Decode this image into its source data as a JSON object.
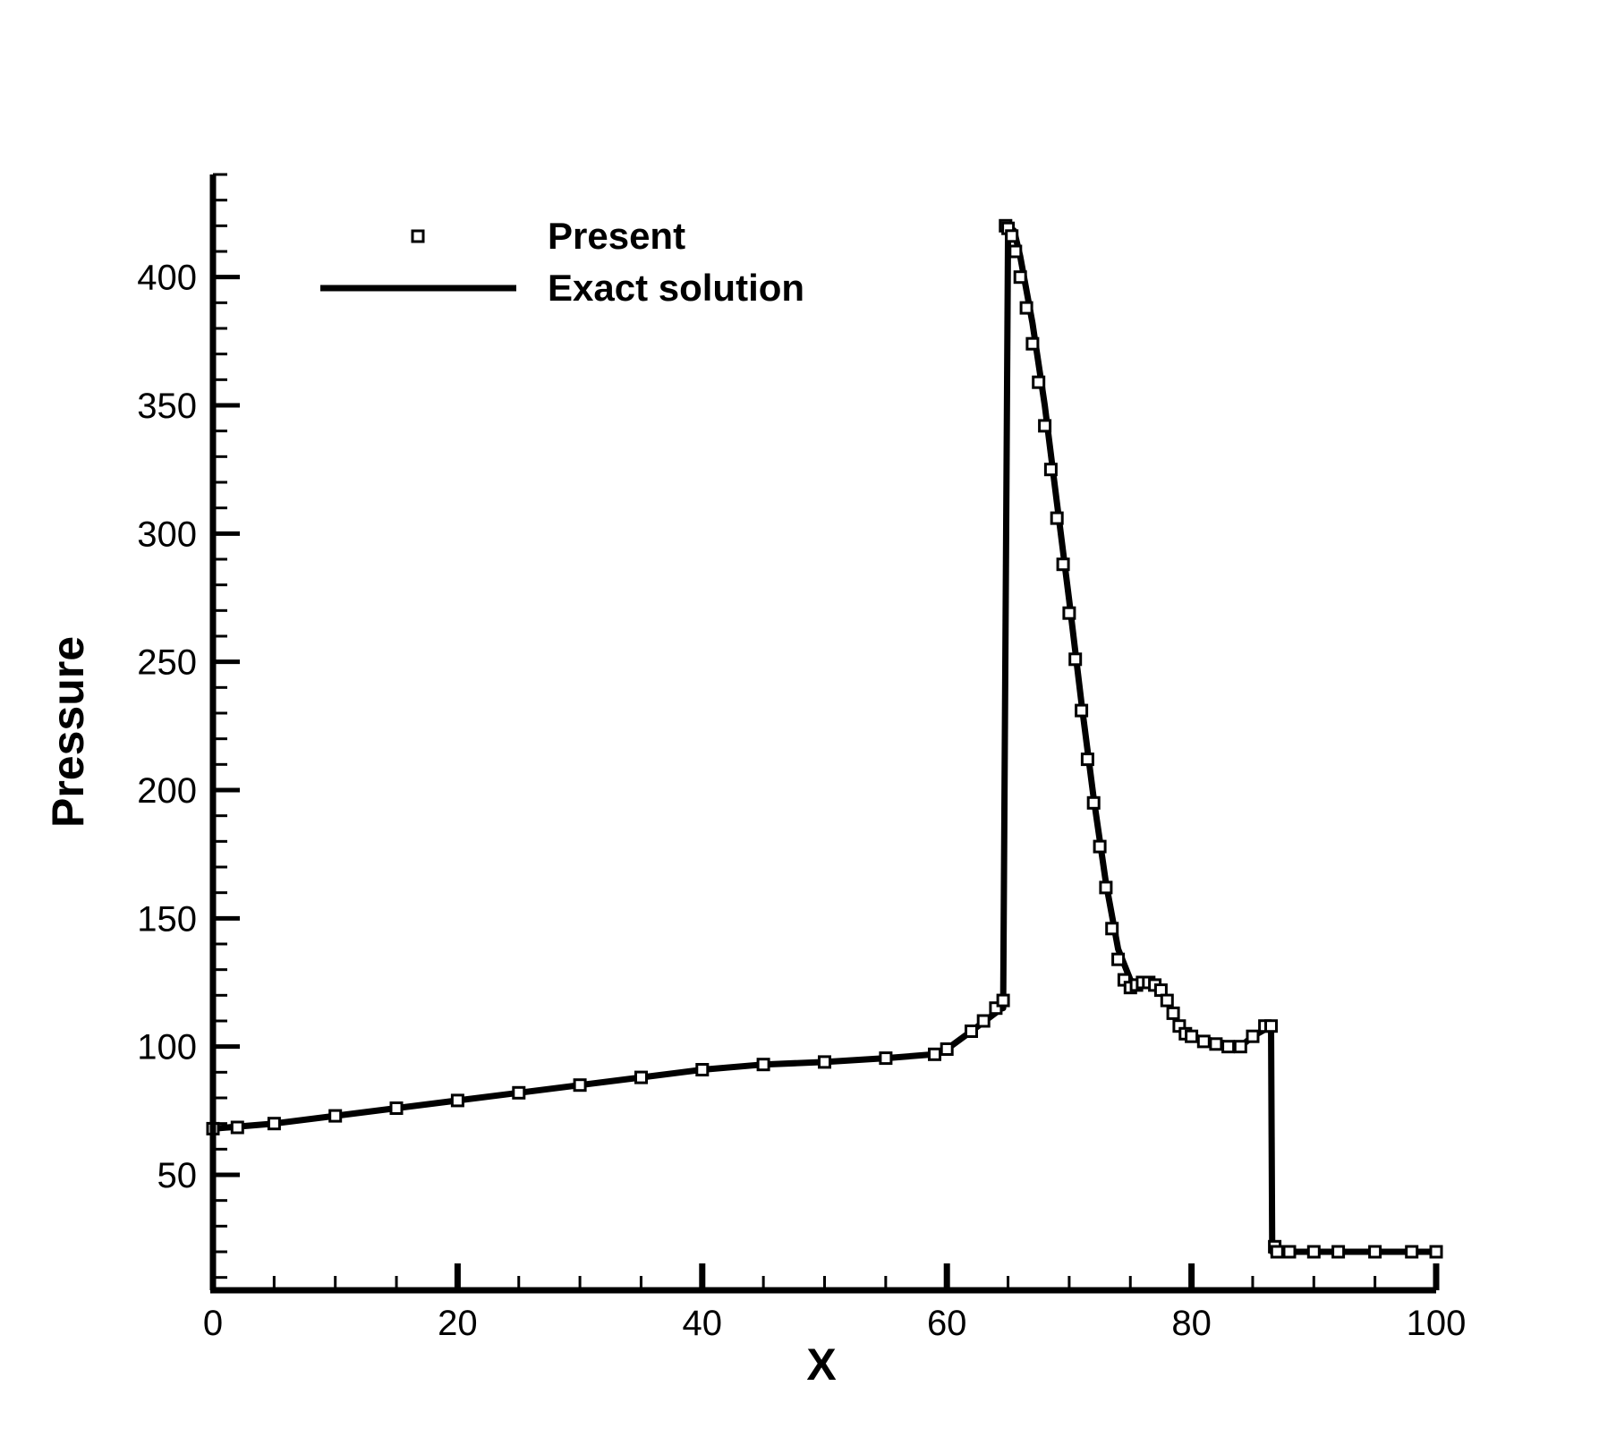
{
  "chart_data": {
    "type": "line",
    "xlabel": "X",
    "ylabel": "Pressure",
    "xlim": [
      0,
      100
    ],
    "ylim": [
      5,
      440
    ],
    "xticks": [
      0,
      20,
      40,
      60,
      80,
      100
    ],
    "yticks": [
      50,
      100,
      150,
      200,
      250,
      300,
      350,
      400
    ],
    "x_minor_step": 5,
    "y_minor_step": 10,
    "grid": false,
    "legend_position": "top-left",
    "colors": {
      "line": "#000000",
      "marker": "#000000",
      "background": "#ffffff"
    },
    "series": [
      {
        "name": "Present",
        "style": "square-markers",
        "x": [
          0,
          2,
          5,
          10,
          15,
          20,
          25,
          30,
          35,
          40,
          45,
          50,
          55,
          59,
          60,
          62,
          63,
          64,
          64.6,
          64.8,
          65,
          65.3,
          65.6,
          66,
          66.5,
          67,
          67.5,
          68,
          68.5,
          69,
          69.5,
          70,
          70.5,
          71,
          71.5,
          72,
          72.5,
          73,
          73.5,
          74,
          74.5,
          75,
          75.5,
          76,
          76.5,
          77,
          77.5,
          78,
          78.5,
          79,
          79.5,
          80,
          81,
          82,
          83,
          84,
          85,
          86,
          86.5,
          86.8,
          87,
          88,
          90,
          92,
          95,
          98,
          100
        ],
        "y": [
          68,
          68.5,
          70,
          73,
          76,
          79,
          82,
          85,
          88,
          91,
          93,
          94,
          95.5,
          97,
          99,
          106,
          110,
          115,
          118,
          420,
          419,
          416,
          410,
          400,
          388,
          374,
          359,
          342,
          325,
          306,
          288,
          269,
          251,
          231,
          212,
          195,
          178,
          162,
          146,
          134,
          126,
          123,
          124,
          125,
          125,
          124,
          122,
          118,
          113,
          108,
          105,
          104,
          102,
          101,
          100,
          100,
          104,
          108,
          108,
          22,
          20,
          20,
          20,
          20,
          20,
          20,
          20
        ]
      },
      {
        "name": "Exact solution",
        "style": "solid-line",
        "x": [
          0,
          5,
          10,
          15,
          20,
          25,
          30,
          35,
          40,
          45,
          50,
          55,
          59,
          60,
          62,
          64.5,
          64.6,
          65,
          65.5,
          66,
          67,
          68,
          69,
          70,
          71,
          72,
          73,
          74,
          75,
          75.5,
          76,
          77,
          78,
          79,
          80,
          82,
          84,
          85,
          86.5,
          86.6,
          87,
          90,
          95,
          100
        ],
        "y": [
          68,
          70,
          73,
          76,
          79,
          82,
          85,
          88,
          91,
          93,
          94,
          95.5,
          97,
          99,
          106,
          115,
          115,
          420,
          418,
          408,
          382,
          350,
          312,
          274,
          234,
          197,
          164,
          138,
          126,
          124,
          125,
          124,
          118,
          108,
          104,
          102,
          100,
          104,
          108,
          20,
          20,
          20,
          20,
          20
        ]
      }
    ]
  }
}
